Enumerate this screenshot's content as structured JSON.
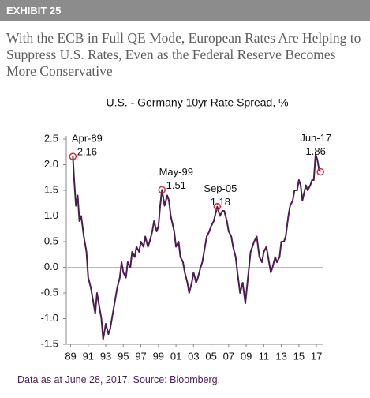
{
  "header": {
    "exhibit": "EXHIBIT 25",
    "title": "With the ECB in Full QE Mode, European Rates Are Helping to Suppress U.S. Rates, Even as the Federal Reserve Becomes More Conservative"
  },
  "footer": {
    "source": "Data as at June 28, 2017. Source: Bloomberg."
  },
  "chart_data": {
    "type": "line",
    "title": "U.S. - Germany 10yr Rate Spread, %",
    "xlim": [
      1988.5,
      2017.8
    ],
    "ylim": [
      -1.5,
      2.5
    ],
    "yticks": [
      2.5,
      {
        "value": 2,
        "label": "2.0"
      },
      1.5,
      {
        "value": 1,
        "label": "1.0"
      },
      0.5,
      {
        "value": 0,
        "label": "0.0"
      },
      -0.5,
      {
        "value": -1,
        "label": "-1.0"
      },
      -1.5
    ],
    "xticks": [
      {
        "value": 1989,
        "label": "89"
      },
      {
        "value": 1991,
        "label": "91"
      },
      {
        "value": 1993,
        "label": "93"
      },
      {
        "value": 1995,
        "label": "95"
      },
      {
        "value": 1997,
        "label": "97"
      },
      {
        "value": 1999,
        "label": "99"
      },
      {
        "value": 2001,
        "label": "01"
      },
      {
        "value": 2003,
        "label": "03"
      },
      {
        "value": 2005,
        "label": "05"
      },
      {
        "value": 2007,
        "label": "07"
      },
      {
        "value": 2009,
        "label": "09"
      },
      {
        "value": 2011,
        "label": "11"
      },
      {
        "value": 2013,
        "label": "13"
      },
      {
        "value": 2015,
        "label": "15"
      },
      {
        "value": 2017,
        "label": "17"
      }
    ],
    "color": "#4b1e4f",
    "marker_color": "#c8323c",
    "x": [
      1989.25,
      1989.4,
      1989.6,
      1989.8,
      1990,
      1990.2,
      1990.5,
      1990.8,
      1991,
      1991.3,
      1991.5,
      1991.8,
      1992,
      1992.3,
      1992.5,
      1992.7,
      1993,
      1993.3,
      1993.5,
      1993.8,
      1994,
      1994.3,
      1994.6,
      1994.8,
      1995,
      1995.3,
      1995.5,
      1995.8,
      1996,
      1996.3,
      1996.5,
      1996.8,
      1997,
      1997.3,
      1997.5,
      1997.8,
      1998,
      1998.3,
      1998.5,
      1998.8,
      1999,
      1999.2,
      1999.4,
      1999.7,
      2000,
      2000.2,
      2000.4,
      2000.8,
      2001,
      2001.3,
      2001.5,
      2001.8,
      2002,
      2002.3,
      2002.5,
      2002.8,
      2003,
      2003.3,
      2003.5,
      2003.8,
      2004,
      2004.3,
      2004.5,
      2004.8,
      2005,
      2005.3,
      2005.7,
      2006,
      2006.3,
      2006.5,
      2006.8,
      2007,
      2007.3,
      2007.5,
      2007.8,
      2008,
      2008.3,
      2008.6,
      2008.9,
      2009.2,
      2009.5,
      2009.9,
      2010.2,
      2010.5,
      2010.8,
      2011,
      2011.3,
      2011.5,
      2011.8,
      2012,
      2012.3,
      2012.5,
      2012.8,
      2013,
      2013.3,
      2013.5,
      2013.8,
      2014,
      2014.3,
      2014.5,
      2014.8,
      2015,
      2015.2,
      2015.4,
      2015.8,
      2016,
      2016.3,
      2016.5,
      2016.7,
      2016.9,
      2017.1,
      2017.3,
      2017.46
    ],
    "values": [
      2.16,
      1.7,
      1.2,
      1.4,
      0.9,
      1.0,
      0.6,
      0.3,
      -0.2,
      -0.4,
      -0.6,
      -0.9,
      -0.5,
      -0.8,
      -1.0,
      -1.4,
      -1.1,
      -1.3,
      -1.2,
      -0.9,
      -0.7,
      -0.4,
      -0.2,
      0.1,
      -0.1,
      -0.2,
      0.1,
      0.0,
      0.3,
      0.2,
      0.4,
      0.3,
      0.5,
      0.4,
      0.6,
      0.4,
      0.5,
      0.7,
      0.9,
      0.7,
      0.8,
      1.2,
      1.51,
      1.2,
      1.4,
      1.3,
      1.0,
      0.7,
      0.4,
      0.5,
      0.2,
      0.1,
      -0.1,
      -0.3,
      -0.5,
      -0.3,
      -0.1,
      -0.3,
      -0.2,
      0.0,
      0.1,
      0.4,
      0.6,
      0.7,
      0.8,
      0.9,
      1.18,
      1.0,
      1.1,
      1.1,
      0.9,
      0.7,
      0.6,
      0.4,
      0.2,
      -0.1,
      -0.5,
      -0.3,
      -0.7,
      -0.2,
      0.3,
      0.5,
      0.6,
      0.2,
      0.1,
      0.3,
      0.4,
      0.2,
      -0.1,
      0.0,
      0.2,
      0.1,
      0.2,
      0.5,
      0.5,
      0.6,
      1.0,
      1.2,
      1.3,
      1.5,
      1.5,
      1.7,
      1.6,
      1.3,
      1.6,
      1.5,
      1.6,
      1.7,
      1.7,
      2.2,
      2.1,
      1.9,
      1.86
    ],
    "annotations": [
      {
        "label": "Apr-89",
        "x": 1989.25,
        "value": 2.16
      },
      {
        "label": "May-99",
        "x": 1999.4,
        "value": 1.51
      },
      {
        "label": "Sep-05",
        "x": 2005.7,
        "value": 1.18
      },
      {
        "label": "Jun-17",
        "x": 2017.46,
        "value": 1.86
      }
    ]
  }
}
